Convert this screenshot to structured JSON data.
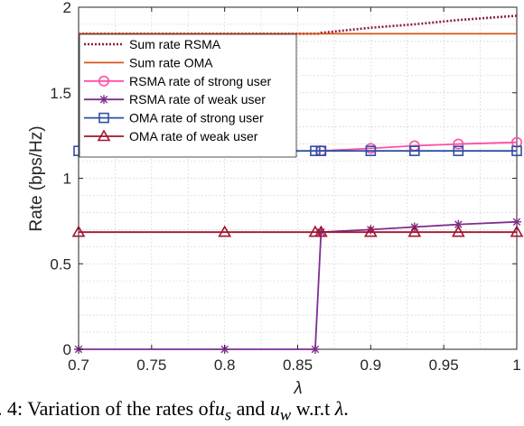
{
  "chart_data": {
    "type": "line",
    "xlabel": "λ",
    "ylabel": "Rate (bps/Hz)",
    "xlim": [
      0.7,
      1.0
    ],
    "ylim": [
      0,
      2
    ],
    "xticks": [
      0.7,
      0.75,
      0.8,
      0.85,
      0.9,
      0.95,
      1
    ],
    "xtick_labels": [
      "0.7",
      "0.75",
      "0.8",
      "0.85",
      "0.9",
      "0.95",
      "1"
    ],
    "yticks": [
      0,
      0.5,
      1,
      1.5,
      2
    ],
    "ytick_labels": [
      "0",
      "0.5",
      "1",
      "1.5",
      "2"
    ],
    "grid": true,
    "legend_position": "upper-left",
    "series": [
      {
        "name": "Sum rate RSMA",
        "color": "#8c1d40",
        "style": "dotted",
        "marker": "none",
        "x": [
          0.7,
          0.86,
          0.864,
          0.866,
          0.9,
          0.93,
          0.96,
          1.0
        ],
        "y": [
          1.845,
          1.845,
          1.845,
          1.85,
          1.88,
          1.9,
          1.925,
          1.95
        ]
      },
      {
        "name": "Sum rate OMA",
        "color": "#d95319",
        "style": "solid",
        "marker": "none",
        "x": [
          0.7,
          1.0
        ],
        "y": [
          1.845,
          1.845
        ]
      },
      {
        "name": "RSMA rate of strong user",
        "color": "#ff4fa3",
        "style": "solid",
        "marker": "circle",
        "x": [
          0.866,
          0.9,
          0.93,
          0.96,
          1.0
        ],
        "y": [
          1.16,
          1.175,
          1.19,
          1.2,
          1.21
        ]
      },
      {
        "name": "RSMA rate of weak user",
        "color": "#7e2f8e",
        "style": "solid",
        "marker": "star",
        "x": [
          0.7,
          0.8,
          0.862,
          0.866,
          0.9,
          0.93,
          0.96,
          1.0
        ],
        "y": [
          0,
          0,
          0,
          0.685,
          0.7,
          0.715,
          0.73,
          0.745
        ]
      },
      {
        "name": "OMA rate of strong user",
        "color": "#2e4fa5",
        "style": "solid",
        "marker": "square",
        "x": [
          0.7,
          0.8,
          0.862,
          0.866,
          0.9,
          0.93,
          0.96,
          1.0
        ],
        "y": [
          1.16,
          1.16,
          1.16,
          1.16,
          1.16,
          1.16,
          1.16,
          1.16
        ]
      },
      {
        "name": "OMA rate of weak user",
        "color": "#a2142f",
        "style": "solid",
        "marker": "triangle",
        "x": [
          0.7,
          0.8,
          0.862,
          0.866,
          0.9,
          0.93,
          0.96,
          1.0
        ],
        "y": [
          0.685,
          0.685,
          0.685,
          0.685,
          0.685,
          0.685,
          0.685,
          0.685
        ]
      }
    ]
  },
  "caption": {
    "prefix": "g. 4: Variation of the rates of ",
    "var1_base": "u",
    "var1_sub": "s",
    "and_text": " and ",
    "var2_base": "u",
    "var2_sub": "w",
    "suffix_text": " w.r.t ",
    "lambda": "λ",
    "end": "."
  }
}
